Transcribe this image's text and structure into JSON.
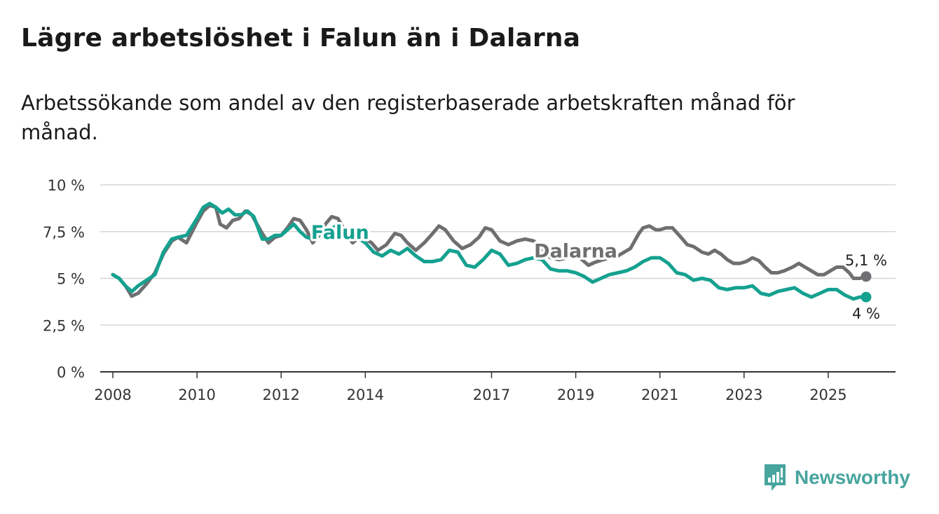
{
  "header": {
    "title": "Lägre arbetslöshet i Falun än i Dalarna",
    "subtitle": "Arbetssökande som andel av den registerbaserade arbetskraften månad för månad."
  },
  "brand": {
    "name": "Newsworthy",
    "color": "#47a49e",
    "icon": "newsworthy-logo-icon"
  },
  "chart_data": {
    "type": "line",
    "title": "Lägre arbetslöshet i Falun än i Dalarna",
    "subtitle": "Arbetssökande som andel av den registerbaserade arbetskraften månad för månad.",
    "xlabel": "",
    "ylabel": "",
    "xlim": [
      2007.7,
      2026.6
    ],
    "ylim": [
      0,
      10
    ],
    "grid": true,
    "x_ticks": [
      {
        "value": 2008,
        "label": "2008"
      },
      {
        "value": 2010,
        "label": "2010"
      },
      {
        "value": 2012,
        "label": "2012"
      },
      {
        "value": 2014,
        "label": "2014"
      },
      {
        "value": 2017,
        "label": "2017"
      },
      {
        "value": 2019,
        "label": "2019"
      },
      {
        "value": 2021,
        "label": "2021"
      },
      {
        "value": 2023,
        "label": "2023"
      },
      {
        "value": 2025,
        "label": "2025"
      }
    ],
    "y_ticks": [
      {
        "value": 0,
        "label": "0 %"
      },
      {
        "value": 2.5,
        "label": "2,5 %"
      },
      {
        "value": 5,
        "label": "5 %"
      },
      {
        "value": 7.5,
        "label": "7,5 %"
      },
      {
        "value": 10,
        "label": "10 %"
      }
    ],
    "series": [
      {
        "name": "Dalarna",
        "color": "#6f6f71",
        "label_at": [
          2019.0,
          6.5
        ],
        "end_label": "5,1 %",
        "points": [
          [
            2008.0,
            5.2
          ],
          [
            2008.15,
            5.0
          ],
          [
            2008.3,
            4.6
          ],
          [
            2008.45,
            4.05
          ],
          [
            2008.6,
            4.2
          ],
          [
            2008.8,
            4.7
          ],
          [
            2009.0,
            5.3
          ],
          [
            2009.2,
            6.3
          ],
          [
            2009.4,
            7.0
          ],
          [
            2009.55,
            7.2
          ],
          [
            2009.75,
            6.9
          ],
          [
            2010.0,
            8.0
          ],
          [
            2010.15,
            8.6
          ],
          [
            2010.3,
            8.9
          ],
          [
            2010.45,
            8.8
          ],
          [
            2010.55,
            7.9
          ],
          [
            2010.7,
            7.7
          ],
          [
            2010.85,
            8.1
          ],
          [
            2011.0,
            8.2
          ],
          [
            2011.15,
            8.6
          ],
          [
            2011.3,
            8.4
          ],
          [
            2011.55,
            7.4
          ],
          [
            2011.7,
            6.9
          ],
          [
            2011.85,
            7.2
          ],
          [
            2012.0,
            7.3
          ],
          [
            2012.15,
            7.7
          ],
          [
            2012.3,
            8.2
          ],
          [
            2012.45,
            8.1
          ],
          [
            2012.6,
            7.6
          ],
          [
            2012.75,
            6.9
          ],
          [
            2012.9,
            7.3
          ],
          [
            2013.05,
            7.9
          ],
          [
            2013.2,
            8.3
          ],
          [
            2013.35,
            8.2
          ],
          [
            2013.55,
            7.4
          ],
          [
            2013.7,
            6.9
          ],
          [
            2013.85,
            7.2
          ],
          [
            2014.0,
            7.1
          ],
          [
            2014.15,
            6.9
          ],
          [
            2014.3,
            6.5
          ],
          [
            2014.5,
            6.8
          ],
          [
            2014.7,
            7.4
          ],
          [
            2014.85,
            7.3
          ],
          [
            2015.0,
            6.9
          ],
          [
            2015.2,
            6.5
          ],
          [
            2015.4,
            6.9
          ],
          [
            2015.6,
            7.4
          ],
          [
            2015.75,
            7.8
          ],
          [
            2015.9,
            7.6
          ],
          [
            2016.1,
            7.0
          ],
          [
            2016.3,
            6.6
          ],
          [
            2016.5,
            6.8
          ],
          [
            2016.7,
            7.2
          ],
          [
            2016.85,
            7.7
          ],
          [
            2017.0,
            7.6
          ],
          [
            2017.2,
            7.0
          ],
          [
            2017.4,
            6.8
          ],
          [
            2017.6,
            7.0
          ],
          [
            2017.8,
            7.1
          ],
          [
            2018.0,
            7.0
          ],
          [
            2018.2,
            6.6
          ],
          [
            2018.4,
            6.1
          ],
          [
            2018.6,
            6.0
          ],
          [
            2018.8,
            6.1
          ],
          [
            2019.0,
            6.2
          ],
          [
            2019.15,
            6.0
          ],
          [
            2019.3,
            5.7
          ],
          [
            2019.45,
            5.85
          ],
          [
            2019.65,
            6.0
          ],
          [
            2019.8,
            6.1
          ],
          [
            2020.0,
            6.2
          ],
          [
            2020.15,
            6.4
          ],
          [
            2020.3,
            6.6
          ],
          [
            2020.5,
            7.4
          ],
          [
            2020.6,
            7.7
          ],
          [
            2020.75,
            7.8
          ],
          [
            2020.9,
            7.6
          ],
          [
            2021.0,
            7.6
          ],
          [
            2021.15,
            7.7
          ],
          [
            2021.3,
            7.7
          ],
          [
            2021.5,
            7.2
          ],
          [
            2021.65,
            6.8
          ],
          [
            2021.8,
            6.7
          ],
          [
            2022.0,
            6.4
          ],
          [
            2022.15,
            6.3
          ],
          [
            2022.3,
            6.5
          ],
          [
            2022.45,
            6.3
          ],
          [
            2022.6,
            6.0
          ],
          [
            2022.75,
            5.8
          ],
          [
            2022.9,
            5.8
          ],
          [
            2023.05,
            5.9
          ],
          [
            2023.2,
            6.1
          ],
          [
            2023.35,
            5.95
          ],
          [
            2023.5,
            5.6
          ],
          [
            2023.65,
            5.3
          ],
          [
            2023.8,
            5.3
          ],
          [
            2023.95,
            5.4
          ],
          [
            2024.15,
            5.6
          ],
          [
            2024.3,
            5.8
          ],
          [
            2024.45,
            5.6
          ],
          [
            2024.6,
            5.4
          ],
          [
            2024.75,
            5.2
          ],
          [
            2024.9,
            5.2
          ],
          [
            2025.05,
            5.4
          ],
          [
            2025.2,
            5.6
          ],
          [
            2025.35,
            5.6
          ],
          [
            2025.5,
            5.3
          ],
          [
            2025.6,
            5.0
          ],
          [
            2025.75,
            5.0
          ],
          [
            2025.9,
            5.1
          ]
        ]
      },
      {
        "name": "Falun",
        "color": "#15a190",
        "label_at": [
          2013.4,
          7.5
        ],
        "end_label": "4 %",
        "points": [
          [
            2008.0,
            5.2
          ],
          [
            2008.15,
            5.0
          ],
          [
            2008.3,
            4.6
          ],
          [
            2008.45,
            4.3
          ],
          [
            2008.6,
            4.6
          ],
          [
            2008.8,
            4.9
          ],
          [
            2009.0,
            5.2
          ],
          [
            2009.2,
            6.4
          ],
          [
            2009.4,
            7.1
          ],
          [
            2009.55,
            7.2
          ],
          [
            2009.75,
            7.3
          ],
          [
            2010.0,
            8.2
          ],
          [
            2010.15,
            8.8
          ],
          [
            2010.3,
            9.0
          ],
          [
            2010.45,
            8.8
          ],
          [
            2010.6,
            8.5
          ],
          [
            2010.75,
            8.7
          ],
          [
            2010.9,
            8.4
          ],
          [
            2011.05,
            8.4
          ],
          [
            2011.2,
            8.6
          ],
          [
            2011.35,
            8.3
          ],
          [
            2011.55,
            7.1
          ],
          [
            2011.7,
            7.1
          ],
          [
            2011.85,
            7.3
          ],
          [
            2012.0,
            7.3
          ],
          [
            2012.15,
            7.6
          ],
          [
            2012.3,
            7.9
          ],
          [
            2012.45,
            7.5
          ],
          [
            2012.6,
            7.2
          ],
          [
            2012.8,
            7.1
          ],
          [
            2012.95,
            7.5
          ],
          [
            2013.1,
            7.5
          ],
          [
            2013.3,
            7.8
          ],
          [
            2013.45,
            7.7
          ],
          [
            2014.0,
            6.9
          ],
          [
            2014.2,
            6.4
          ],
          [
            2014.4,
            6.2
          ],
          [
            2014.6,
            6.5
          ],
          [
            2014.8,
            6.3
          ],
          [
            2015.0,
            6.6
          ],
          [
            2015.2,
            6.2
          ],
          [
            2015.4,
            5.9
          ],
          [
            2015.6,
            5.9
          ],
          [
            2015.8,
            6.0
          ],
          [
            2016.0,
            6.5
          ],
          [
            2016.2,
            6.4
          ],
          [
            2016.4,
            5.7
          ],
          [
            2016.6,
            5.6
          ],
          [
            2016.8,
            6.0
          ],
          [
            2017.0,
            6.5
          ],
          [
            2017.2,
            6.3
          ],
          [
            2017.4,
            5.7
          ],
          [
            2017.6,
            5.8
          ],
          [
            2017.8,
            6.0
          ],
          [
            2018.0,
            6.1
          ],
          [
            2018.2,
            6.0
          ],
          [
            2018.4,
            5.5
          ],
          [
            2018.6,
            5.4
          ],
          [
            2018.8,
            5.4
          ],
          [
            2019.0,
            5.3
          ],
          [
            2019.2,
            5.1
          ],
          [
            2019.4,
            4.8
          ],
          [
            2019.6,
            5.0
          ],
          [
            2019.8,
            5.2
          ],
          [
            2020.0,
            5.3
          ],
          [
            2020.2,
            5.4
          ],
          [
            2020.4,
            5.6
          ],
          [
            2020.6,
            5.9
          ],
          [
            2020.8,
            6.1
          ],
          [
            2021.0,
            6.1
          ],
          [
            2021.2,
            5.8
          ],
          [
            2021.4,
            5.3
          ],
          [
            2021.6,
            5.2
          ],
          [
            2021.8,
            4.9
          ],
          [
            2022.0,
            5.0
          ],
          [
            2022.2,
            4.9
          ],
          [
            2022.4,
            4.5
          ],
          [
            2022.6,
            4.4
          ],
          [
            2022.8,
            4.5
          ],
          [
            2023.0,
            4.5
          ],
          [
            2023.2,
            4.6
          ],
          [
            2023.4,
            4.2
          ],
          [
            2023.6,
            4.1
          ],
          [
            2023.8,
            4.3
          ],
          [
            2024.0,
            4.4
          ],
          [
            2024.2,
            4.5
          ],
          [
            2024.4,
            4.2
          ],
          [
            2024.6,
            4.0
          ],
          [
            2024.8,
            4.2
          ],
          [
            2025.0,
            4.4
          ],
          [
            2025.2,
            4.4
          ],
          [
            2025.4,
            4.1
          ],
          [
            2025.6,
            3.9
          ],
          [
            2025.75,
            4.0
          ],
          [
            2025.9,
            4.0
          ]
        ]
      }
    ]
  }
}
